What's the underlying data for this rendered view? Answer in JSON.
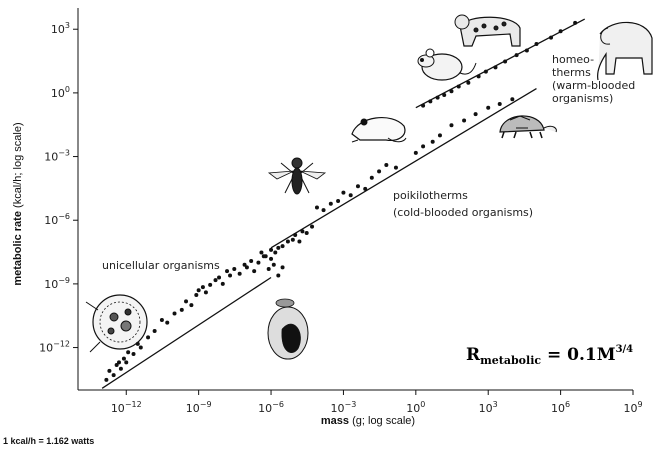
{
  "chart_data": {
    "type": "scatter",
    "title": "",
    "xlabel": "mass (g; log scale)",
    "ylabel": "metabolic rate (kcal/h; log scale)",
    "x_scale": "log",
    "y_scale": "log",
    "xlim": [
      1e-14,
      1000000000.0
    ],
    "ylim": [
      1e-14,
      10000.0
    ],
    "x_ticks": [
      {
        "value": 1e-12,
        "base": "10",
        "exp": "−12"
      },
      {
        "value": 1e-09,
        "base": "10",
        "exp": "−9"
      },
      {
        "value": 1e-06,
        "base": "10",
        "exp": "−6"
      },
      {
        "value": 0.001,
        "base": "10",
        "exp": "−3"
      },
      {
        "value": 1,
        "base": "10",
        "exp": "0"
      },
      {
        "value": 1000.0,
        "base": "10",
        "exp": "3"
      },
      {
        "value": 1000000.0,
        "base": "10",
        "exp": "6"
      },
      {
        "value": 1000000000.0,
        "base": "10",
        "exp": "9"
      }
    ],
    "y_ticks": [
      {
        "value": 1e-12,
        "base": "10",
        "exp": "−12"
      },
      {
        "value": 1e-09,
        "base": "10",
        "exp": "−9"
      },
      {
        "value": 1e-06,
        "base": "10",
        "exp": "−6"
      },
      {
        "value": 0.001,
        "base": "10",
        "exp": "−3"
      },
      {
        "value": 1,
        "base": "10",
        "exp": "0"
      },
      {
        "value": 1000.0,
        "base": "10",
        "exp": "3"
      }
    ],
    "grid": false,
    "annotations": {
      "unicellular": "unicellular organisms",
      "poikilotherms": [
        "poikilotherms",
        "(cold-blooded organisms)"
      ],
      "homeotherms": [
        "homeo-",
        "therms",
        "(warm-blooded",
        "organisms)"
      ]
    },
    "equation": {
      "r": "R",
      "sub": "metabolic",
      "rhs": " = 0.1M",
      "sup": "3/4"
    },
    "series": [
      {
        "group": "unicellular",
        "fit": {
          "x": [
            1e-13,
            1e-06
          ],
          "y": [
            1.2e-14,
            2e-09
          ]
        },
        "points": [
          [
            1.5e-13,
            3e-14
          ],
          [
            2e-13,
            8e-14
          ],
          [
            3e-13,
            5e-14
          ],
          [
            4e-13,
            1.5e-13
          ],
          [
            5e-13,
            2e-13
          ],
          [
            6e-13,
            1e-13
          ],
          [
            8e-13,
            3e-13
          ],
          [
            1e-12,
            2e-13
          ],
          [
            1.2e-12,
            6e-13
          ],
          [
            2e-12,
            5e-13
          ],
          [
            3e-12,
            1.5e-12
          ],
          [
            4e-12,
            1e-12
          ],
          [
            8e-12,
            3e-12
          ],
          [
            1.5e-11,
            6e-12
          ],
          [
            3e-11,
            2e-11
          ],
          [
            5e-11,
            1.5e-11
          ],
          [
            1e-10,
            4e-11
          ],
          [
            2e-10,
            6e-11
          ],
          [
            3e-10,
            1.5e-10
          ],
          [
            5e-10,
            1e-10
          ],
          [
            8e-10,
            3e-10
          ],
          [
            1e-09,
            5e-10
          ],
          [
            1.5e-09,
            7e-10
          ],
          [
            2e-09,
            4e-10
          ],
          [
            3e-09,
            9e-10
          ],
          [
            5e-09,
            1.5e-09
          ],
          [
            7e-09,
            2e-09
          ],
          [
            1e-08,
            1e-09
          ],
          [
            1.5e-08,
            4e-09
          ],
          [
            2e-08,
            2.5e-09
          ],
          [
            3e-08,
            5e-09
          ],
          [
            5e-08,
            3e-09
          ],
          [
            8e-08,
            8e-09
          ],
          [
            1e-07,
            6e-09
          ],
          [
            1.5e-07,
            1.2e-08
          ],
          [
            2e-07,
            4e-09
          ],
          [
            3e-07,
            1e-08
          ],
          [
            4e-07,
            3e-08
          ],
          [
            6e-07,
            2e-08
          ],
          [
            8e-07,
            5e-09
          ],
          [
            1e-06,
            1.5e-08
          ],
          [
            1.3e-06,
            8e-09
          ],
          [
            2e-06,
            2.5e-09
          ],
          [
            3e-06,
            6e-09
          ]
        ]
      },
      {
        "group": "poikilotherms",
        "fit": {
          "x": [
            1e-06,
            100000.0
          ],
          "y": [
            5e-08,
            1.6
          ]
        },
        "points": [
          [
            5e-07,
            2e-08
          ],
          [
            1e-06,
            4e-08
          ],
          [
            1.5e-06,
            3e-08
          ],
          [
            2e-06,
            5e-08
          ],
          [
            3e-06,
            6e-08
          ],
          [
            5e-06,
            1e-07
          ],
          [
            8e-06,
            1.2e-07
          ],
          [
            1e-05,
            2e-07
          ],
          [
            1.5e-05,
            1e-07
          ],
          [
            2e-05,
            3e-07
          ],
          [
            3e-05,
            2.5e-07
          ],
          [
            5e-05,
            5e-07
          ],
          [
            8e-05,
            4e-06
          ],
          [
            0.00015,
            3e-06
          ],
          [
            0.0003,
            6e-06
          ],
          [
            0.0006,
            8e-06
          ],
          [
            0.001,
            2e-05
          ],
          [
            0.002,
            1.5e-05
          ],
          [
            0.004,
            4e-05
          ],
          [
            0.008,
            3e-05
          ],
          [
            0.015,
            0.0001
          ],
          [
            0.03,
            0.0002
          ],
          [
            0.06,
            0.0004
          ],
          [
            0.15,
            0.0003
          ],
          [
            1.0,
            0.0015
          ],
          [
            2.0,
            0.003
          ],
          [
            5.0,
            0.005
          ],
          [
            10.0,
            0.01
          ],
          [
            30.0,
            0.03
          ],
          [
            100.0,
            0.05
          ],
          [
            300.0,
            0.1
          ],
          [
            1000.0,
            0.2
          ],
          [
            3000.0,
            0.3
          ],
          [
            10000.0,
            0.5
          ]
        ]
      },
      {
        "group": "homeotherms",
        "fit": {
          "x": [
            1.0,
            10000000.0
          ],
          "y": [
            0.2,
            3000.0
          ]
        },
        "points": [
          [
            2.0,
            0.25
          ],
          [
            4.0,
            0.4
          ],
          [
            8.0,
            0.6
          ],
          [
            15.0,
            0.8
          ],
          [
            30.0,
            1.2
          ],
          [
            60.0,
            2.0
          ],
          [
            150.0,
            3.0
          ],
          [
            400.0,
            6.0
          ],
          [
            800.0,
            10.0
          ],
          [
            2000.0,
            16.0
          ],
          [
            5000.0,
            30.0
          ],
          [
            15000.0,
            60.0
          ],
          [
            40000.0,
            100.0
          ],
          [
            100000.0,
            200.0
          ],
          [
            400000.0,
            400.0
          ],
          [
            1000000.0,
            800.0
          ],
          [
            4000000.0,
            2000.0
          ]
        ]
      }
    ]
  },
  "footnote": "1 kcal/h = 1.162 watts",
  "icons": [
    "amoeba-icon",
    "fly-icon",
    "frog-icon",
    "mouse-icon",
    "leopard-icon",
    "elephant-icon",
    "tortoise-icon",
    "spore-icon"
  ]
}
